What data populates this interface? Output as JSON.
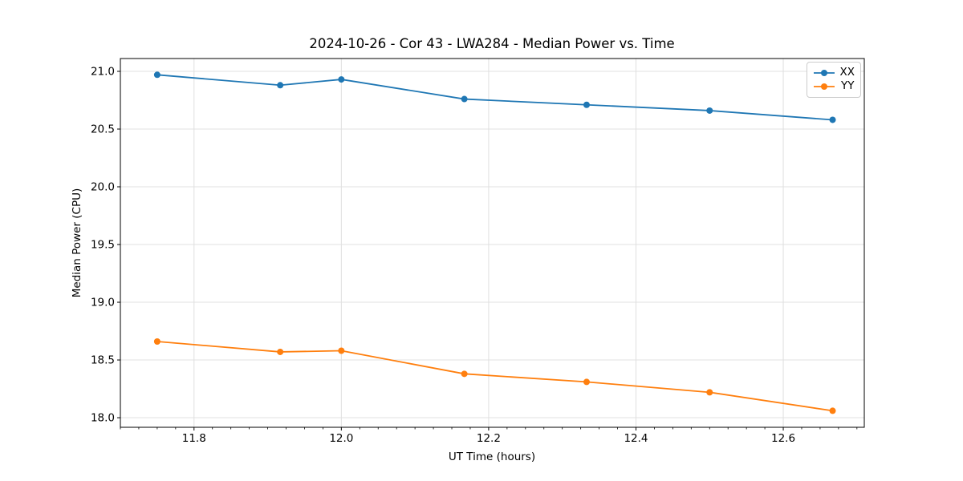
{
  "chart_data": {
    "type": "line",
    "title": "2024-10-26 - Cor 43 - LWA284 - Median Power vs. Time",
    "xlabel": "UT Time (hours)",
    "ylabel": "Median Power (CPU)",
    "x": [
      11.75,
      11.917,
      12.0,
      12.167,
      12.333,
      12.5,
      12.667
    ],
    "series": [
      {
        "name": "XX",
        "color": "#1f77b4",
        "values": [
          20.97,
          20.88,
          20.93,
          20.76,
          20.71,
          20.66,
          20.58
        ]
      },
      {
        "name": "YY",
        "color": "#ff7f0e",
        "values": [
          18.66,
          18.57,
          18.58,
          18.38,
          18.31,
          18.22,
          18.06
        ]
      }
    ],
    "xlim": [
      11.7,
      12.71
    ],
    "ylim": [
      17.917,
      21.111
    ],
    "xticks": [
      11.8,
      12.0,
      12.2,
      12.4,
      12.6
    ],
    "xtick_labels": [
      "11.8",
      "12.0",
      "12.2",
      "12.4",
      "12.6"
    ],
    "yticks": [
      18.0,
      18.5,
      19.0,
      19.5,
      20.0,
      20.5,
      21.0
    ],
    "ytick_labels": [
      "18.0",
      "18.5",
      "19.0",
      "19.5",
      "20.0",
      "20.5",
      "21.0"
    ],
    "x_minor_step": 0.025,
    "grid": true,
    "grid_color": "#e0e0e0",
    "spine_color": "#000000",
    "marker": "o",
    "marker_radius": 4,
    "line_width": 1.8,
    "legend_position": "upper right"
  }
}
